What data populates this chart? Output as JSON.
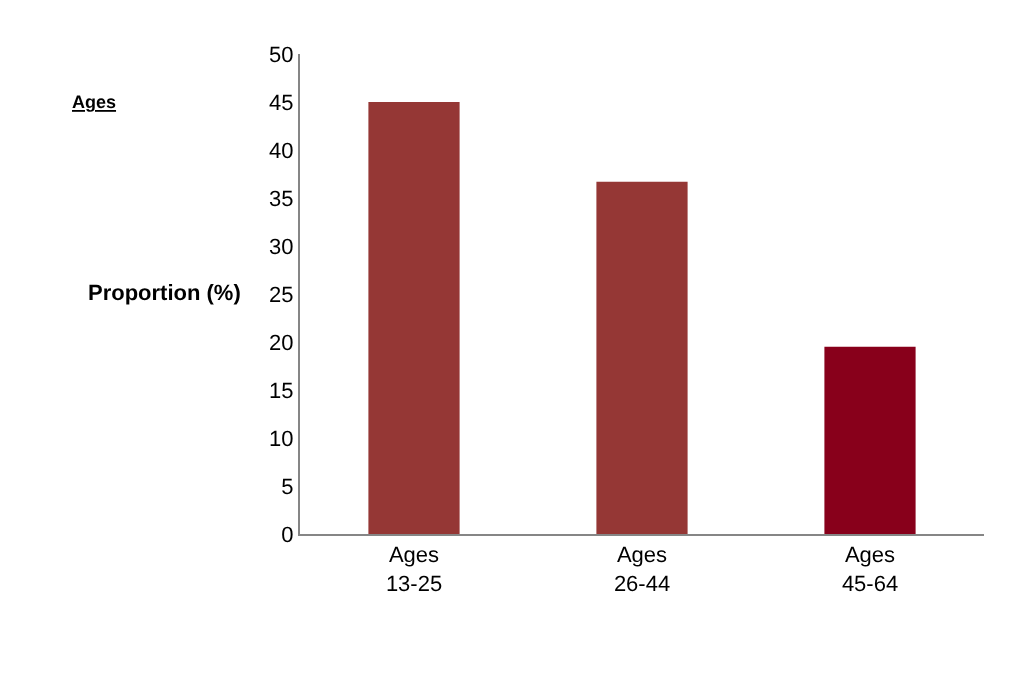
{
  "chart_data": {
    "type": "bar",
    "title": "Ages",
    "ylabel": "Proportion (%)",
    "categories": [
      "Ages 13-25",
      "Ages 26-44",
      "Ages 45-64"
    ],
    "values": [
      45,
      36.7,
      19.5
    ],
    "colors": [
      "#953735",
      "#953735",
      "#88001b"
    ],
    "ylim": [
      0,
      50
    ],
    "yticks": [
      0,
      5,
      10,
      15,
      20,
      25,
      30,
      35,
      40,
      45,
      50
    ]
  }
}
